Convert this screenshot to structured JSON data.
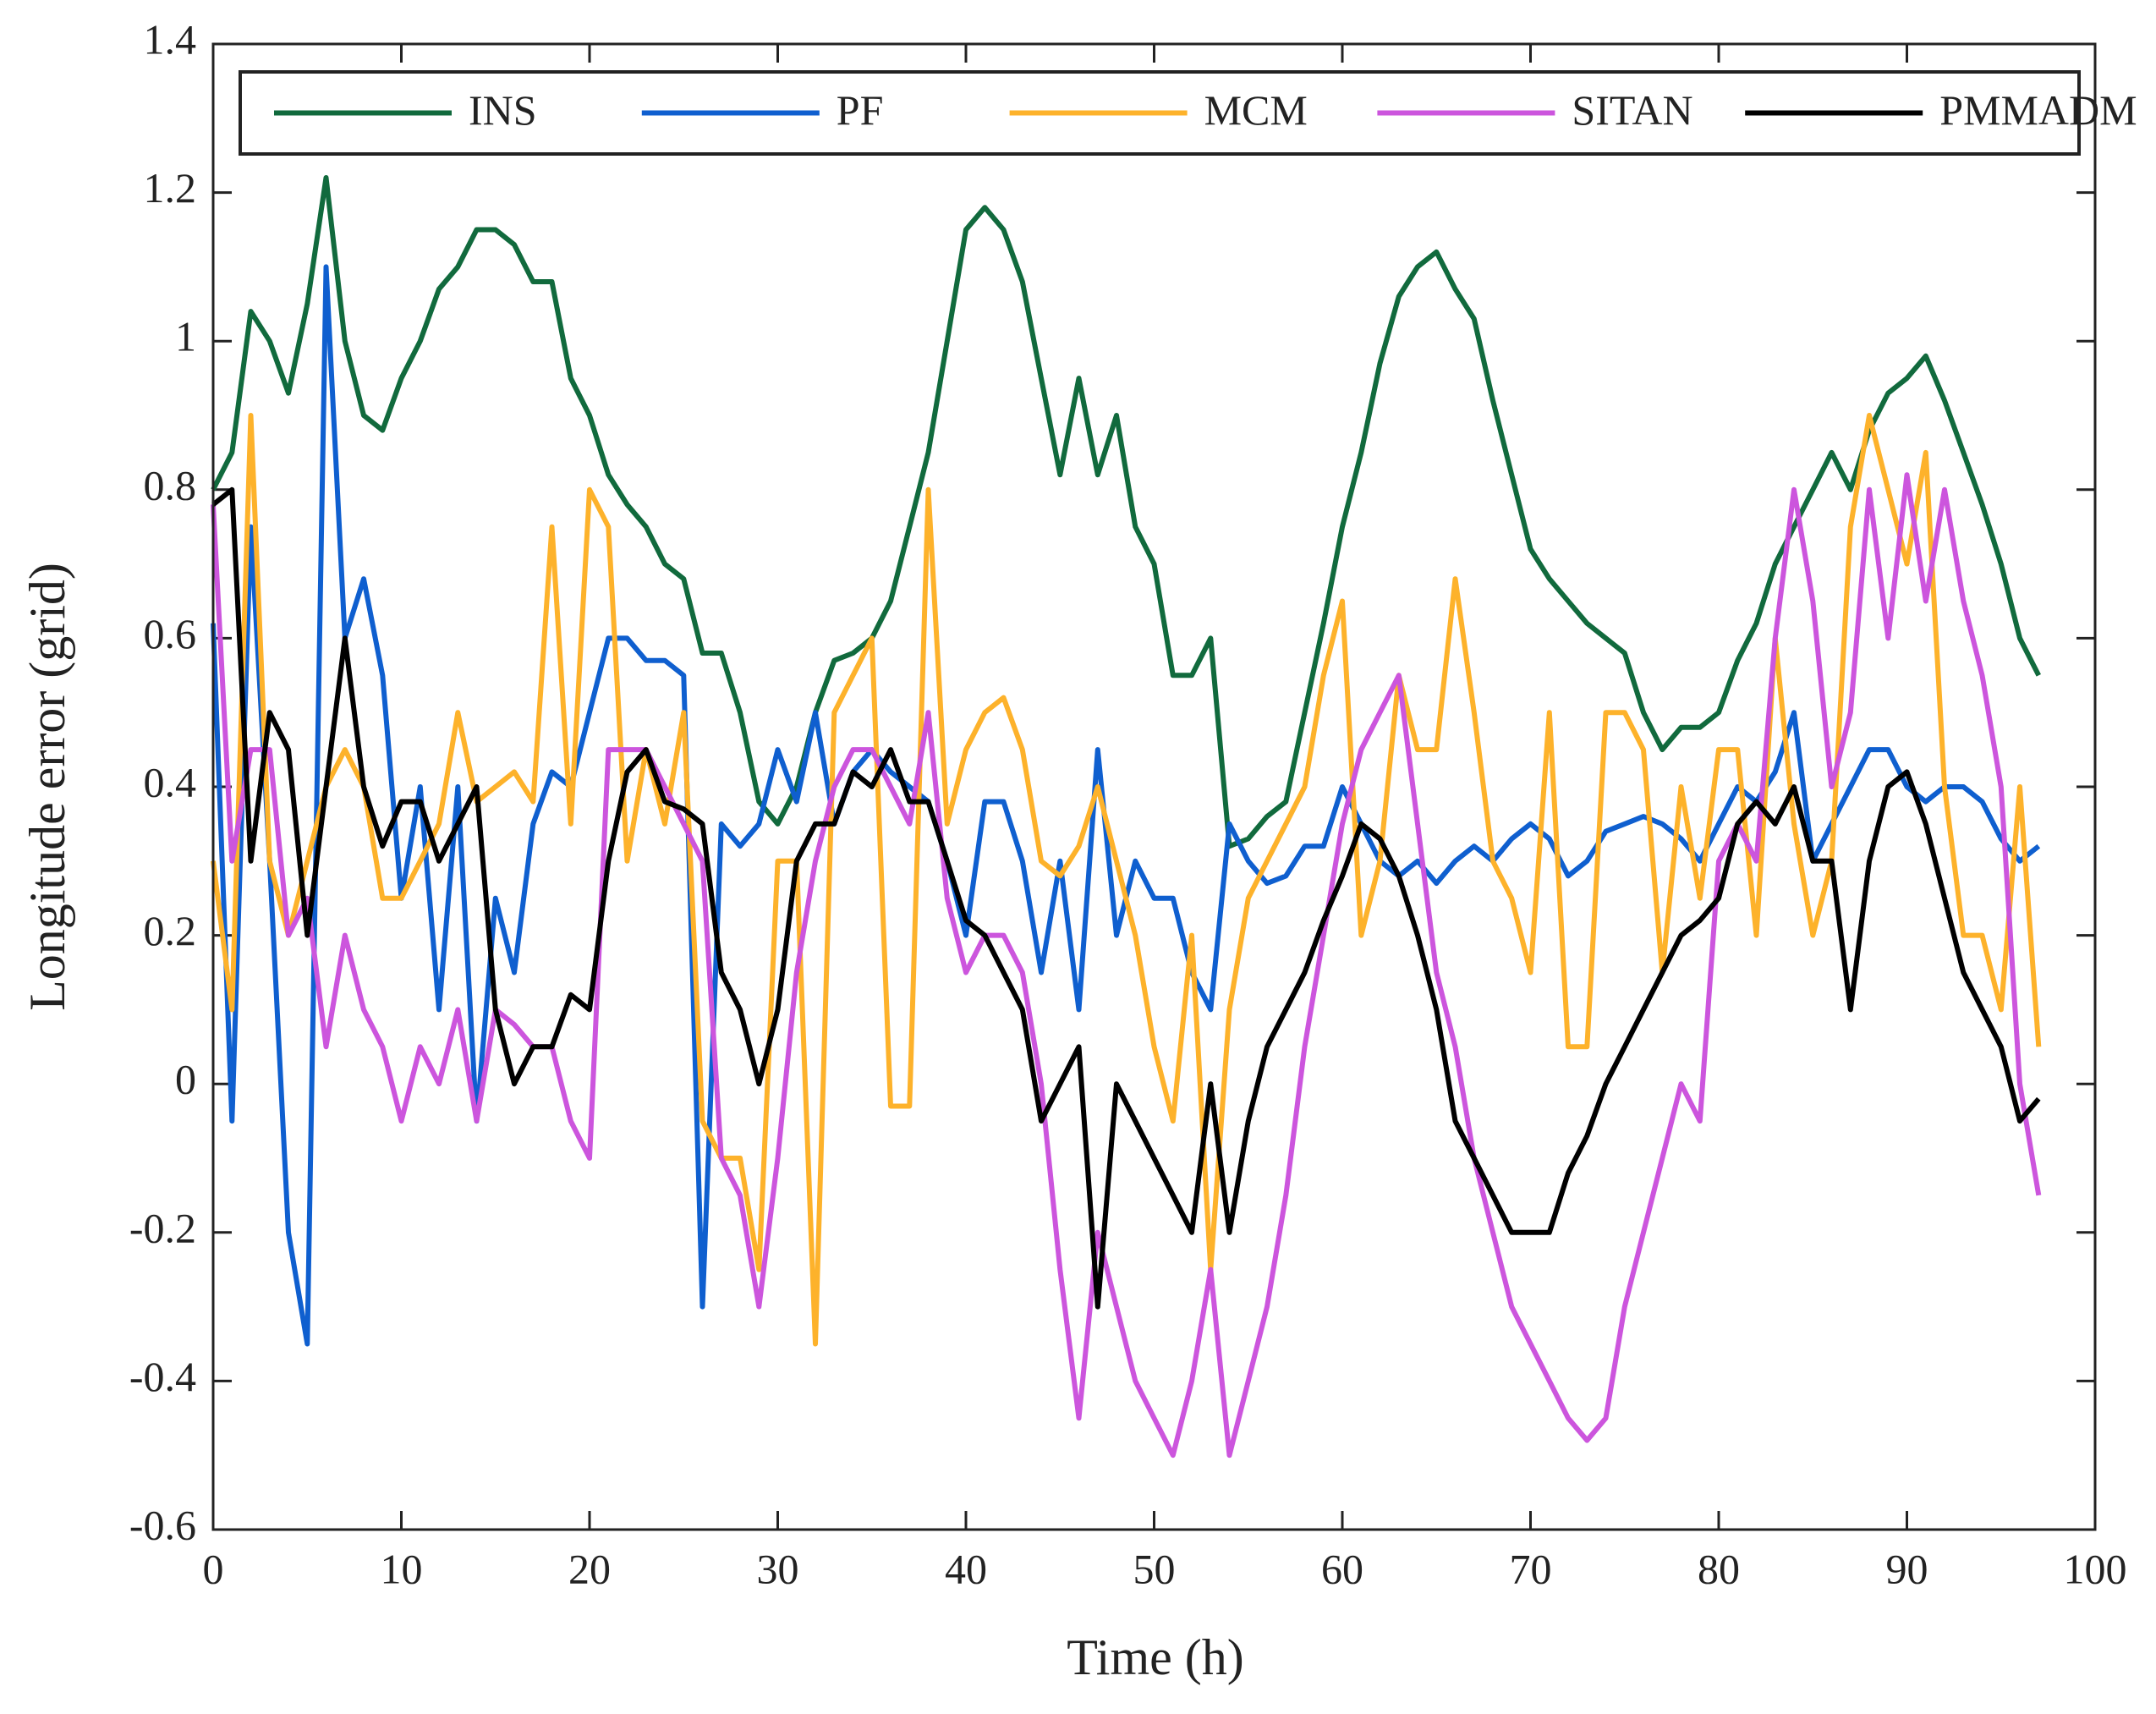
{
  "chart_data": {
    "type": "line",
    "xlabel": "Time (h)",
    "ylabel": "Longitude error (grid)",
    "xlim": [
      0,
      100
    ],
    "ylim": [
      -0.6,
      1.4
    ],
    "xticks": [
      0,
      10,
      20,
      30,
      40,
      50,
      60,
      70,
      80,
      90,
      100
    ],
    "yticks": [
      -0.6,
      -0.4,
      -0.2,
      0,
      0.2,
      0.4,
      0.6,
      0.8,
      1,
      1.2,
      1.4
    ],
    "legend": "top",
    "x": [
      0,
      1,
      2,
      3,
      4,
      5,
      6,
      7,
      8,
      9,
      10,
      11,
      12,
      13,
      14,
      15,
      16,
      17,
      18,
      19,
      20,
      21,
      22,
      23,
      24,
      25,
      26,
      27,
      28,
      29,
      30,
      31,
      32,
      33,
      34,
      35,
      36,
      37,
      38,
      39,
      40,
      41,
      42,
      43,
      44,
      45,
      46,
      47,
      48,
      49,
      50,
      51,
      52,
      53,
      54,
      55,
      56,
      57,
      58,
      59,
      60,
      61,
      62,
      63,
      64,
      65,
      66,
      67,
      68,
      69,
      70,
      71,
      72,
      73,
      74,
      75,
      76,
      77,
      78,
      79,
      80,
      81,
      82,
      83,
      84,
      85,
      86,
      87,
      88,
      89,
      90,
      91,
      92,
      93,
      94,
      95,
      96,
      97
    ],
    "series": [
      {
        "name": "INS",
        "color": "#116a3d",
        "values": [
          0.8,
          0.85,
          1.04,
          1.0,
          0.93,
          1.05,
          1.22,
          1.0,
          0.9,
          0.88,
          0.95,
          1.0,
          1.07,
          1.1,
          1.15,
          1.15,
          1.13,
          1.08,
          1.08,
          0.95,
          0.9,
          0.82,
          0.78,
          0.75,
          0.7,
          0.68,
          0.58,
          0.58,
          0.5,
          0.38,
          0.35,
          0.4,
          0.5,
          0.57,
          0.58,
          0.6,
          0.65,
          0.75,
          0.85,
          1.0,
          1.15,
          1.18,
          1.15,
          1.08,
          0.95,
          0.82,
          0.95,
          0.82,
          0.9,
          0.75,
          0.7,
          0.55,
          0.55,
          0.6,
          0.32,
          0.33,
          0.36,
          0.38,
          0.5,
          0.62,
          0.75,
          0.85,
          0.97,
          1.06,
          1.1,
          1.12,
          1.07,
          1.03,
          0.92,
          0.82,
          0.72,
          0.68,
          0.65,
          0.62,
          0.6,
          0.58,
          0.5,
          0.45,
          0.48,
          0.48,
          0.5,
          0.57,
          0.62,
          0.7,
          0.75,
          0.8,
          0.85,
          0.8,
          0.88,
          0.93,
          0.95,
          0.98,
          0.92,
          0.85,
          0.78,
          0.7,
          0.6,
          0.55
        ]
      },
      {
        "name": "PF",
        "color": "#0f5fcf",
        "values": [
          0.62,
          -0.05,
          0.75,
          0.3,
          -0.2,
          -0.35,
          1.1,
          0.6,
          0.68,
          0.55,
          0.25,
          0.4,
          0.1,
          0.4,
          -0.05,
          0.25,
          0.15,
          0.35,
          0.42,
          0.4,
          0.5,
          0.6,
          0.6,
          0.57,
          0.57,
          0.55,
          -0.3,
          0.35,
          0.32,
          0.35,
          0.45,
          0.38,
          0.5,
          0.35,
          0.42,
          0.45,
          0.42,
          0.4,
          0.38,
          0.3,
          0.2,
          0.38,
          0.38,
          0.3,
          0.15,
          0.3,
          0.1,
          0.45,
          0.2,
          0.3,
          0.25,
          0.25,
          0.15,
          0.1,
          0.35,
          0.3,
          0.27,
          0.28,
          0.32,
          0.32,
          0.4,
          0.35,
          0.3,
          0.28,
          0.3,
          0.27,
          0.3,
          0.32,
          0.3,
          0.33,
          0.35,
          0.33,
          0.28,
          0.3,
          0.34,
          0.35,
          0.36,
          0.35,
          0.33,
          0.3,
          0.35,
          0.4,
          0.38,
          0.42,
          0.5,
          0.3,
          0.35,
          0.4,
          0.45,
          0.45,
          0.4,
          0.38,
          0.4,
          0.4,
          0.38,
          0.33,
          0.3,
          0.32
        ]
      },
      {
        "name": "MCM",
        "color": "#fdb22b",
        "values": [
          0.3,
          0.1,
          0.9,
          0.3,
          0.2,
          0.3,
          0.4,
          0.45,
          0.4,
          0.25,
          0.25,
          0.3,
          0.35,
          0.5,
          0.38,
          0.4,
          0.42,
          0.38,
          0.75,
          0.35,
          0.8,
          0.75,
          0.3,
          0.45,
          0.35,
          0.5,
          -0.05,
          -0.1,
          -0.1,
          -0.25,
          0.3,
          0.3,
          -0.35,
          0.5,
          0.55,
          0.6,
          -0.03,
          -0.03,
          0.8,
          0.35,
          0.45,
          0.5,
          0.52,
          0.45,
          0.3,
          0.28,
          0.32,
          0.4,
          0.3,
          0.2,
          0.05,
          -0.05,
          0.2,
          -0.25,
          0.1,
          0.25,
          0.3,
          0.35,
          0.4,
          0.55,
          0.65,
          0.2,
          0.3,
          0.55,
          0.45,
          0.45,
          0.68,
          0.5,
          0.3,
          0.25,
          0.15,
          0.5,
          0.05,
          0.05,
          0.5,
          0.5,
          0.45,
          0.15,
          0.4,
          0.25,
          0.45,
          0.45,
          0.2,
          0.6,
          0.35,
          0.2,
          0.3,
          0.75,
          0.9,
          0.8,
          0.7,
          0.85,
          0.4,
          0.2,
          0.2,
          0.1,
          0.4,
          0.05
        ]
      },
      {
        "name": "SITAN",
        "color": "#cc55dd",
        "values": [
          0.78,
          0.3,
          0.45,
          0.45,
          0.2,
          0.25,
          0.05,
          0.2,
          0.1,
          0.05,
          -0.05,
          0.05,
          0.0,
          0.1,
          -0.05,
          0.1,
          0.08,
          0.05,
          0.05,
          -0.05,
          -0.1,
          0.45,
          0.45,
          0.45,
          0.4,
          0.35,
          0.3,
          -0.1,
          -0.15,
          -0.3,
          -0.1,
          0.15,
          0.3,
          0.4,
          0.45,
          0.45,
          0.4,
          0.35,
          0.5,
          0.25,
          0.15,
          0.2,
          0.2,
          0.15,
          0.0,
          -0.25,
          -0.45,
          -0.2,
          -0.3,
          -0.4,
          -0.45,
          -0.5,
          -0.4,
          -0.25,
          -0.5,
          -0.4,
          -0.3,
          -0.15,
          0.05,
          0.2,
          0.35,
          0.45,
          0.5,
          0.55,
          0.35,
          0.15,
          0.05,
          -0.1,
          -0.2,
          -0.3,
          -0.35,
          -0.4,
          -0.45,
          -0.48,
          -0.45,
          -0.3,
          -0.2,
          -0.1,
          0.0,
          -0.05,
          0.3,
          0.35,
          0.3,
          0.6,
          0.8,
          0.65,
          0.4,
          0.5,
          0.8,
          0.6,
          0.82,
          0.65,
          0.8,
          0.65,
          0.55,
          0.4,
          0.0,
          -0.15
        ]
      },
      {
        "name": "PMMADM",
        "color": "#000000",
        "values": [
          0.78,
          0.8,
          0.3,
          0.5,
          0.45,
          0.2,
          0.4,
          0.6,
          0.4,
          0.32,
          0.38,
          0.38,
          0.3,
          0.35,
          0.4,
          0.1,
          0.0,
          0.05,
          0.05,
          0.12,
          0.1,
          0.3,
          0.42,
          0.45,
          0.38,
          0.37,
          0.35,
          0.15,
          0.1,
          0.0,
          0.1,
          0.3,
          0.35,
          0.35,
          0.42,
          0.4,
          0.45,
          0.38,
          0.38,
          0.3,
          0.22,
          0.2,
          0.15,
          0.1,
          -0.05,
          0.0,
          0.05,
          -0.3,
          0.0,
          -0.05,
          -0.1,
          -0.15,
          -0.2,
          0.0,
          -0.2,
          -0.05,
          0.05,
          0.1,
          0.15,
          0.22,
          0.28,
          0.35,
          0.33,
          0.28,
          0.2,
          0.1,
          -0.05,
          -0.1,
          -0.15,
          -0.2,
          -0.2,
          -0.2,
          -0.12,
          -0.07,
          0.0,
          0.05,
          0.1,
          0.15,
          0.2,
          0.22,
          0.25,
          0.35,
          0.38,
          0.35,
          0.4,
          0.3,
          0.3,
          0.1,
          0.3,
          0.4,
          0.42,
          0.35,
          0.25,
          0.15,
          0.1,
          0.05,
          -0.05,
          -0.02
        ]
      }
    ]
  }
}
